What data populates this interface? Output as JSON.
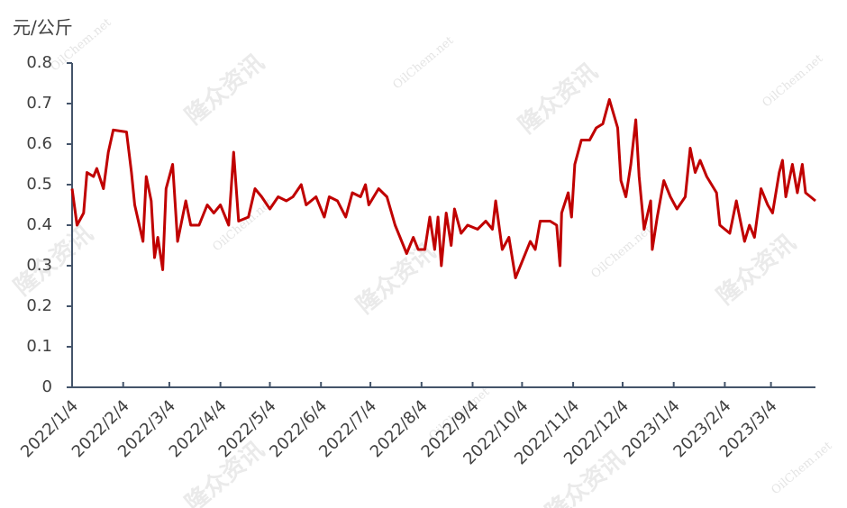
{
  "chart_data": {
    "type": "line",
    "y_axis_label": "元/公斤",
    "watermark": [
      "隆众资讯",
      "OilChem.net"
    ],
    "color": "#c00000",
    "x": [
      "2022/1/4",
      "2022/1/7",
      "2022/1/11",
      "2022/1/13",
      "2022/1/17",
      "2022/1/19",
      "2022/1/23",
      "2022/1/26",
      "2022/1/29",
      "2022/2/6",
      "2022/2/9",
      "2022/2/11",
      "2022/2/16",
      "2022/2/18",
      "2022/2/21",
      "2022/2/23",
      "2022/2/25",
      "2022/2/28",
      "2022/3/2",
      "2022/3/6",
      "2022/3/9",
      "2022/3/14",
      "2022/3/17",
      "2022/3/22",
      "2022/3/27",
      "2022/3/31",
      "2022/4/4",
      "2022/4/9",
      "2022/4/12",
      "2022/4/15",
      "2022/4/21",
      "2022/4/25",
      "2022/4/29",
      "2022/5/4",
      "2022/5/9",
      "2022/5/14",
      "2022/5/18",
      "2022/5/23",
      "2022/5/26",
      "2022/6/1",
      "2022/6/6",
      "2022/6/9",
      "2022/6/14",
      "2022/6/19",
      "2022/6/23",
      "2022/6/28",
      "2022/7/1",
      "2022/7/3",
      "2022/7/9",
      "2022/7/14",
      "2022/7/19",
      "2022/7/22",
      "2022/7/26",
      "2022/7/30",
      "2022/8/2",
      "2022/8/6",
      "2022/8/9",
      "2022/8/12",
      "2022/8/14",
      "2022/8/16",
      "2022/8/19",
      "2022/8/22",
      "2022/8/24",
      "2022/8/28",
      "2022/9/1",
      "2022/9/7",
      "2022/9/12",
      "2022/9/16",
      "2022/9/18",
      "2022/9/22",
      "2022/9/26",
      "2022/9/30",
      "2022/10/4",
      "2022/10/9",
      "2022/10/12",
      "2022/10/15",
      "2022/10/21",
      "2022/10/25",
      "2022/10/27",
      "2022/10/28",
      "2022/11/1",
      "2022/11/3",
      "2022/11/5",
      "2022/11/9",
      "2022/11/14",
      "2022/11/18",
      "2022/11/22",
      "2022/11/26",
      "2022/12/1",
      "2022/12/3",
      "2022/12/6",
      "2022/12/9",
      "2022/12/12",
      "2022/12/14",
      "2022/12/17",
      "2022/12/21",
      "2022/12/22",
      "2022/12/25",
      "2022/12/29",
      "2023/1/2",
      "2023/1/6",
      "2023/1/11",
      "2023/1/14",
      "2023/1/17",
      "2023/1/20",
      "2023/1/24",
      "2023/1/30",
      "2023/2/1",
      "2023/2/7",
      "2023/2/11",
      "2023/2/16",
      "2023/2/19",
      "2023/2/22",
      "2023/2/26",
      "2023/3/2",
      "2023/3/5",
      "2023/3/9",
      "2023/3/11",
      "2023/3/13",
      "2023/3/17",
      "2023/3/20",
      "2023/3/23",
      "2023/3/25",
      "2023/3/28",
      "2023/3/31"
    ],
    "values": [
      0.49,
      0.4,
      0.43,
      0.53,
      0.52,
      0.54,
      0.49,
      0.58,
      0.635,
      0.63,
      0.53,
      0.45,
      0.36,
      0.52,
      0.46,
      0.32,
      0.37,
      0.29,
      0.49,
      0.55,
      0.36,
      0.46,
      0.4,
      0.4,
      0.45,
      0.43,
      0.45,
      0.4,
      0.58,
      0.41,
      0.42,
      0.49,
      0.47,
      0.44,
      0.47,
      0.46,
      0.47,
      0.5,
      0.45,
      0.47,
      0.42,
      0.47,
      0.46,
      0.42,
      0.48,
      0.47,
      0.5,
      0.45,
      0.49,
      0.47,
      0.4,
      0.37,
      0.33,
      0.37,
      0.34,
      0.34,
      0.42,
      0.34,
      0.42,
      0.3,
      0.43,
      0.35,
      0.44,
      0.38,
      0.4,
      0.39,
      0.41,
      0.39,
      0.46,
      0.34,
      0.37,
      0.27,
      0.31,
      0.36,
      0.34,
      0.41,
      0.41,
      0.4,
      0.3,
      0.43,
      0.48,
      0.42,
      0.55,
      0.61,
      0.61,
      0.64,
      0.65,
      0.71,
      0.64,
      0.51,
      0.47,
      0.55,
      0.66,
      0.52,
      0.39,
      0.46,
      0.34,
      0.42,
      0.51,
      0.47,
      0.44,
      0.47,
      0.59,
      0.53,
      0.56,
      0.52,
      0.48,
      0.4,
      0.38,
      0.46,
      0.36,
      0.4,
      0.37,
      0.49,
      0.45,
      0.43,
      0.53,
      0.56,
      0.47,
      0.55,
      0.48,
      0.55,
      0.48,
      0.47,
      0.46
    ],
    "xlim": [
      "2022/1/4",
      "2023/3/31"
    ],
    "xticks": [
      "2022/1/4",
      "2022/2/4",
      "2022/3/4",
      "2022/4/4",
      "2022/5/4",
      "2022/6/4",
      "2022/7/4",
      "2022/8/4",
      "2022/9/4",
      "2022/10/4",
      "2022/11/4",
      "2022/12/4",
      "2023/1/4",
      "2023/2/4",
      "2023/3/4"
    ],
    "ylim": [
      0,
      0.8
    ],
    "yticks": [
      0,
      0.1,
      0.2,
      0.3,
      0.4,
      0.5,
      0.6,
      0.7,
      0.8
    ]
  }
}
